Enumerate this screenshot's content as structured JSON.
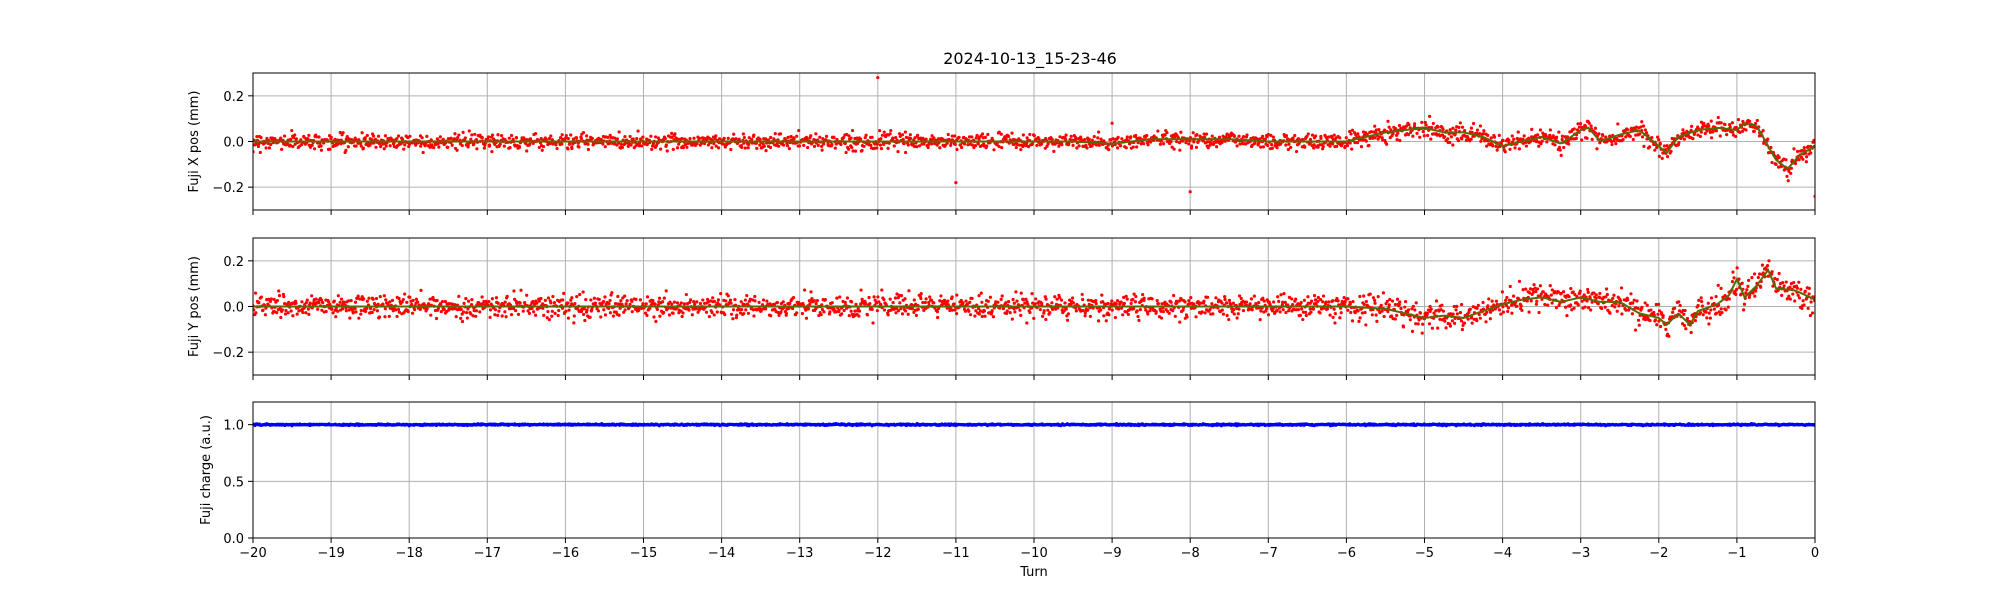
{
  "title": "2024-10-13_15-23-46",
  "colors": {
    "scatter_position": "#ff0000",
    "scatter_charge": "#0000ff",
    "smooth_line": "#556b00",
    "grid": "#b0b0b0",
    "axes": "#000000"
  },
  "chart_data": [
    {
      "type": "scatter",
      "xlabel": "",
      "ylabel": "Fuji X pos (mm)",
      "xlim": [
        -20,
        0
      ],
      "ylim": [
        -0.3,
        0.3
      ],
      "yticks": [
        -0.2,
        0.0,
        0.2
      ],
      "ytick_labels": [
        "−0.2",
        "0.0",
        "0.2"
      ],
      "grid": true,
      "noise_amplitude": 0.03,
      "series": [
        {
          "style": "scatter",
          "color": "#ff0000",
          "x": [
            -20,
            -19,
            -18,
            -17,
            -16,
            -15,
            -14,
            -13,
            -12,
            -11,
            -10,
            -9.5,
            -9,
            -8.5,
            -8,
            -7.5,
            -7,
            -6.5,
            -6,
            -5.75,
            -5.5,
            -5.25,
            -5,
            -4.75,
            -4.5,
            -4.25,
            -4,
            -3.75,
            -3.5,
            -3.25,
            -3,
            -2.9,
            -2.75,
            -2.5,
            -2.25,
            -2,
            -1.9,
            -1.75,
            -1.5,
            -1.25,
            -1,
            -0.9,
            -0.75,
            -0.5,
            -0.35,
            -0.2,
            0
          ],
          "values": [
            0.0,
            0.0,
            0.0,
            0.0,
            0.0,
            0.0,
            0.0,
            0.0,
            0.0,
            0.0,
            0.0,
            0.0,
            -0.01,
            0.01,
            0.01,
            0.01,
            0.0,
            0.0,
            0.0,
            0.02,
            0.04,
            0.05,
            0.06,
            0.04,
            0.04,
            0.02,
            -0.02,
            0.0,
            0.02,
            -0.01,
            0.05,
            0.06,
            0.0,
            0.03,
            0.05,
            -0.02,
            -0.05,
            0.02,
            0.05,
            0.06,
            0.05,
            0.08,
            0.07,
            -0.08,
            -0.12,
            -0.06,
            -0.02
          ]
        },
        {
          "style": "line",
          "color": "#556b00",
          "x": [
            -20,
            -19,
            -18,
            -17,
            -16,
            -15,
            -14,
            -13,
            -12,
            -11,
            -10,
            -9.5,
            -9,
            -8.5,
            -8,
            -7.5,
            -7,
            -6.5,
            -6,
            -5.75,
            -5.5,
            -5.25,
            -5,
            -4.75,
            -4.5,
            -4.25,
            -4,
            -3.75,
            -3.5,
            -3.25,
            -3,
            -2.9,
            -2.75,
            -2.5,
            -2.25,
            -2,
            -1.9,
            -1.75,
            -1.5,
            -1.25,
            -1,
            -0.9,
            -0.75,
            -0.5,
            -0.35,
            -0.2,
            0
          ],
          "values": [
            0.0,
            0.0,
            0.0,
            0.0,
            0.0,
            0.0,
            0.0,
            0.0,
            0.0,
            0.0,
            0.0,
            0.0,
            -0.01,
            0.01,
            0.01,
            0.01,
            0.0,
            0.0,
            0.0,
            0.02,
            0.04,
            0.05,
            0.06,
            0.04,
            0.04,
            0.02,
            -0.02,
            0.0,
            0.02,
            -0.01,
            0.05,
            0.06,
            0.0,
            0.03,
            0.05,
            -0.02,
            -0.05,
            0.02,
            0.05,
            0.06,
            0.05,
            0.08,
            0.07,
            -0.08,
            -0.12,
            -0.06,
            -0.02
          ]
        }
      ],
      "outliers": {
        "x": [
          -12,
          -11,
          -9,
          -8,
          0
        ],
        "y": [
          0.28,
          -0.18,
          0.08,
          -0.22,
          -0.24
        ]
      }
    },
    {
      "type": "scatter",
      "xlabel": "",
      "ylabel": "Fuji Y pos (mm)",
      "xlim": [
        -20,
        0
      ],
      "ylim": [
        -0.3,
        0.3
      ],
      "yticks": [
        -0.2,
        0.0,
        0.2
      ],
      "ytick_labels": [
        "−0.2",
        "0.0",
        "0.2"
      ],
      "grid": true,
      "noise_amplitude": 0.045,
      "series": [
        {
          "style": "scatter",
          "color": "#ff0000",
          "x": [
            -20,
            -19,
            -18,
            -17,
            -16,
            -15,
            -14,
            -13,
            -12,
            -11,
            -10,
            -9,
            -8,
            -7,
            -6,
            -5.5,
            -5.25,
            -5,
            -4.75,
            -4.5,
            -4.25,
            -4,
            -3.75,
            -3.5,
            -3.25,
            -3,
            -2.75,
            -2.5,
            -2.25,
            -2,
            -1.9,
            -1.75,
            -1.6,
            -1.5,
            -1.25,
            -1.1,
            -1,
            -0.9,
            -0.75,
            -0.6,
            -0.5,
            -0.25,
            0
          ],
          "values": [
            0.0,
            0.0,
            0.0,
            0.0,
            0.0,
            0.0,
            0.0,
            0.0,
            0.0,
            0.0,
            0.0,
            0.0,
            0.0,
            0.0,
            0.0,
            -0.01,
            -0.03,
            -0.05,
            -0.04,
            -0.05,
            -0.02,
            0.01,
            0.03,
            0.04,
            0.02,
            0.04,
            0.02,
            0.02,
            -0.03,
            -0.05,
            -0.08,
            -0.03,
            -0.08,
            -0.02,
            0.01,
            0.05,
            0.12,
            0.04,
            0.09,
            0.16,
            0.08,
            0.07,
            0.03
          ]
        },
        {
          "style": "line",
          "color": "#556b00",
          "x": [
            -20,
            -19,
            -18,
            -17,
            -16,
            -15,
            -14,
            -13,
            -12,
            -11,
            -10,
            -9,
            -8,
            -7,
            -6,
            -5.5,
            -5.25,
            -5,
            -4.75,
            -4.5,
            -4.25,
            -4,
            -3.75,
            -3.5,
            -3.25,
            -3,
            -2.75,
            -2.5,
            -2.25,
            -2,
            -1.9,
            -1.75,
            -1.6,
            -1.5,
            -1.25,
            -1.1,
            -1,
            -0.9,
            -0.75,
            -0.6,
            -0.5,
            -0.25,
            0
          ],
          "values": [
            0.0,
            0.0,
            0.0,
            0.0,
            0.0,
            0.0,
            0.0,
            0.0,
            0.0,
            0.0,
            0.0,
            0.0,
            0.0,
            0.0,
            0.0,
            -0.01,
            -0.03,
            -0.05,
            -0.04,
            -0.05,
            -0.02,
            0.01,
            0.03,
            0.04,
            0.02,
            0.04,
            0.02,
            0.02,
            -0.03,
            -0.05,
            -0.08,
            -0.03,
            -0.08,
            -0.02,
            0.01,
            0.05,
            0.12,
            0.04,
            0.09,
            0.16,
            0.08,
            0.07,
            0.03
          ]
        }
      ],
      "outliers": {
        "x": [],
        "y": []
      }
    },
    {
      "type": "scatter",
      "xlabel": "Turn",
      "ylabel": "Fuji charge (a.u.)",
      "xlim": [
        -20,
        0
      ],
      "ylim": [
        0.0,
        1.2
      ],
      "yticks": [
        0.0,
        0.5,
        1.0
      ],
      "ytick_labels": [
        "0.0",
        "0.5",
        "1.0"
      ],
      "grid": true,
      "noise_amplitude": 0.006,
      "series": [
        {
          "style": "scatter",
          "color": "#0000ff",
          "x": [
            -20,
            -15,
            -10,
            -5,
            0
          ],
          "values": [
            1.0,
            1.0,
            1.0,
            1.0,
            1.0
          ]
        }
      ],
      "outliers": {
        "x": [],
        "y": []
      }
    }
  ],
  "xticks": [
    -20,
    -19,
    -18,
    -17,
    -16,
    -15,
    -14,
    -13,
    -12,
    -11,
    -10,
    -9,
    -8,
    -7,
    -6,
    -5,
    -4,
    -3,
    -2,
    -1,
    0
  ],
  "xtick_labels": [
    "−20",
    "−19",
    "−18",
    "−17",
    "−16",
    "−15",
    "−14",
    "−13",
    "−12",
    "−11",
    "−10",
    "−9",
    "−8",
    "−7",
    "−6",
    "−5",
    "−4",
    "−3",
    "−2",
    "−1",
    "0"
  ]
}
